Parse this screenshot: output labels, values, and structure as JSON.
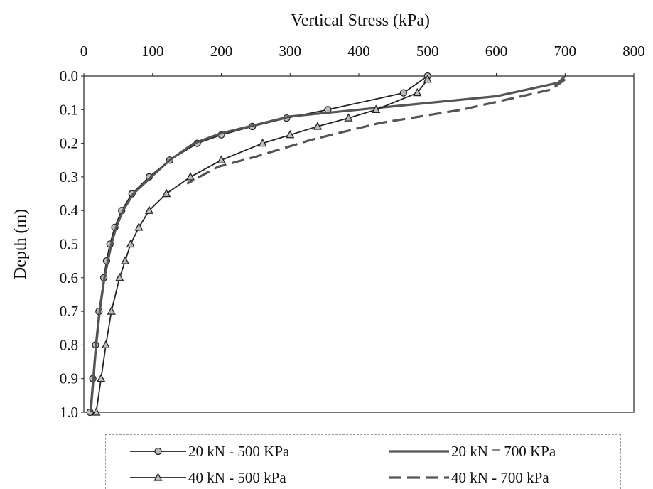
{
  "chart_data": {
    "type": "line",
    "title": "",
    "xlabel": "Vertical Stress (kPa)",
    "ylabel": "Depth (m)",
    "xlim": [
      0,
      800
    ],
    "ylim": [
      0,
      1.0
    ],
    "x_axis_position": "top",
    "y_axis_inverted": true,
    "xticks": [
      "0",
      "100",
      "200",
      "300",
      "400",
      "500",
      "600",
      "700",
      "800"
    ],
    "yticks": [
      "0.0",
      "0.1",
      "0.2",
      "0.3",
      "0.4",
      "0.5",
      "0.6",
      "0.7",
      "0.8",
      "0.9",
      "1.0"
    ],
    "grid": false,
    "legend_position": "bottom",
    "series": [
      {
        "name": "20 kN - 500 KPa",
        "marker": "circle",
        "line": "solid",
        "color": "#222222",
        "points": [
          [
            500,
            0.0
          ],
          [
            465,
            0.05
          ],
          [
            355,
            0.1
          ],
          [
            295,
            0.125
          ],
          [
            245,
            0.15
          ],
          [
            200,
            0.175
          ],
          [
            165,
            0.2
          ],
          [
            125,
            0.25
          ],
          [
            95,
            0.3
          ],
          [
            70,
            0.35
          ],
          [
            55,
            0.4
          ],
          [
            45,
            0.45
          ],
          [
            38,
            0.5
          ],
          [
            33,
            0.55
          ],
          [
            29,
            0.6
          ],
          [
            22,
            0.7
          ],
          [
            17,
            0.8
          ],
          [
            13,
            0.9
          ],
          [
            9,
            1.0
          ]
        ]
      },
      {
        "name": "20 kN = 700 KPa",
        "marker": "none",
        "line": "solid",
        "color": "#555555",
        "points": [
          [
            700,
            0.0
          ],
          [
            690,
            0.02
          ],
          [
            600,
            0.06
          ],
          [
            450,
            0.09
          ],
          [
            300,
            0.12
          ],
          [
            200,
            0.17
          ],
          [
            160,
            0.2
          ],
          [
            125,
            0.25
          ],
          [
            98,
            0.3
          ],
          [
            72,
            0.35
          ],
          [
            57,
            0.4
          ],
          [
            47,
            0.45
          ],
          [
            40,
            0.5
          ],
          [
            35,
            0.55
          ],
          [
            30,
            0.6
          ],
          [
            23,
            0.7
          ],
          [
            18,
            0.8
          ],
          [
            14,
            0.9
          ],
          [
            10,
            1.0
          ]
        ]
      },
      {
        "name": "40 kN - 500 kPa",
        "marker": "triangle",
        "line": "solid",
        "color": "#222222",
        "points": [
          [
            500,
            0.01
          ],
          [
            485,
            0.05
          ],
          [
            425,
            0.1
          ],
          [
            385,
            0.125
          ],
          [
            340,
            0.15
          ],
          [
            300,
            0.175
          ],
          [
            260,
            0.2
          ],
          [
            200,
            0.25
          ],
          [
            155,
            0.3
          ],
          [
            120,
            0.35
          ],
          [
            95,
            0.4
          ],
          [
            80,
            0.45
          ],
          [
            68,
            0.5
          ],
          [
            60,
            0.55
          ],
          [
            52,
            0.6
          ],
          [
            40,
            0.7
          ],
          [
            32,
            0.8
          ],
          [
            25,
            0.9
          ],
          [
            18,
            1.0
          ]
        ]
      },
      {
        "name": "40 kN - 700 kPa",
        "marker": "none",
        "line": "dashed",
        "color": "#555555",
        "points": [
          [
            700,
            0.01
          ],
          [
            680,
            0.04
          ],
          [
            550,
            0.1
          ],
          [
            430,
            0.14
          ],
          [
            330,
            0.19
          ],
          [
            250,
            0.24
          ],
          [
            195,
            0.27
          ],
          [
            150,
            0.32
          ]
        ]
      }
    ]
  }
}
